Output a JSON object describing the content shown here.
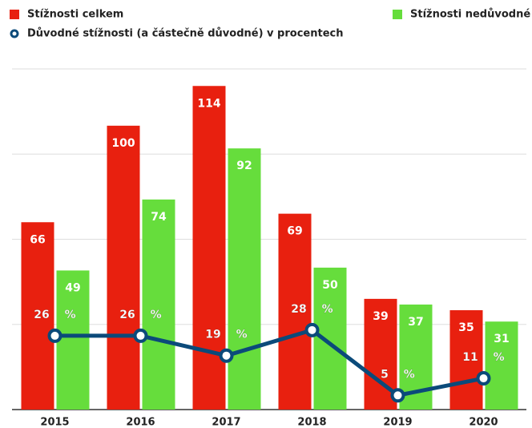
{
  "chart_data": {
    "type": "bar",
    "categories": [
      "2015",
      "2016",
      "2017",
      "2018",
      "2019",
      "2020"
    ],
    "series": [
      {
        "name": "Stížnosti celkem",
        "color": "#e8200f",
        "values": [
          66,
          100,
          114,
          69,
          39,
          35
        ]
      },
      {
        "name": "Stížnosti nedůvodné",
        "color": "#66dd3c",
        "values": [
          49,
          74,
          92,
          50,
          37,
          31
        ]
      },
      {
        "name": "Důvodné stížnosti (a částečně důvodné) v procentech",
        "type": "line",
        "color": "#0b4a7a",
        "values": [
          26,
          26,
          19,
          28,
          5,
          11
        ],
        "value_labels": [
          "26 %",
          "26 %",
          "19 %",
          "28 %",
          "5 %",
          "11 %"
        ]
      }
    ],
    "ylim": [
      0,
      120
    ],
    "yticks": [
      0,
      30,
      60,
      90,
      120
    ],
    "grid": true
  }
}
